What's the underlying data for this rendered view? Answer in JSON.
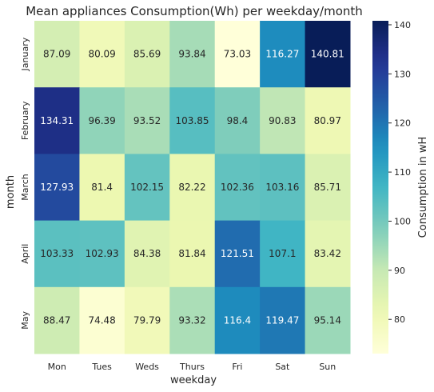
{
  "chart_data": {
    "type": "heatmap",
    "title": "Mean appliances Consumption(Wh) per weekday/month",
    "xlabel": "weekday",
    "ylabel": "month",
    "x": [
      "Mon",
      "Tues",
      "Weds",
      "Thurs",
      "Fri",
      "Sat",
      "Sun"
    ],
    "y": [
      "January",
      "February",
      "March",
      "April",
      "May"
    ],
    "values": [
      [
        87.09,
        80.09,
        85.69,
        93.84,
        73.03,
        116.27,
        140.81
      ],
      [
        134.31,
        96.39,
        93.52,
        103.85,
        98.4,
        90.83,
        80.97
      ],
      [
        127.93,
        81.4,
        102.15,
        82.22,
        102.36,
        103.16,
        85.71
      ],
      [
        103.33,
        102.93,
        84.38,
        81.84,
        121.51,
        107.1,
        83.42
      ],
      [
        88.47,
        74.48,
        79.79,
        93.32,
        116.4,
        119.47,
        95.14
      ]
    ],
    "value_labels": [
      [
        "87.09",
        "80.09",
        "85.69",
        "93.84",
        "73.03",
        "116.27",
        "140.81"
      ],
      [
        "134.31",
        "96.39",
        "93.52",
        "103.85",
        "98.4",
        "90.83",
        "80.97"
      ],
      [
        "127.93",
        "81.4",
        "102.15",
        "82.22",
        "102.36",
        "103.16",
        "85.71"
      ],
      [
        "103.33",
        "102.93",
        "84.38",
        "81.84",
        "121.51",
        "107.1",
        "83.42"
      ],
      [
        "88.47",
        "74.48",
        "79.79",
        "93.32",
        "116.4",
        "119.47",
        "95.14"
      ]
    ],
    "colorbar": {
      "label": "Consumption in wH",
      "ticks": [
        "80",
        "90",
        "100",
        "110",
        "120",
        "130",
        "140"
      ],
      "range": [
        73.03,
        140.81
      ],
      "colormap": "YlGnBu"
    }
  }
}
